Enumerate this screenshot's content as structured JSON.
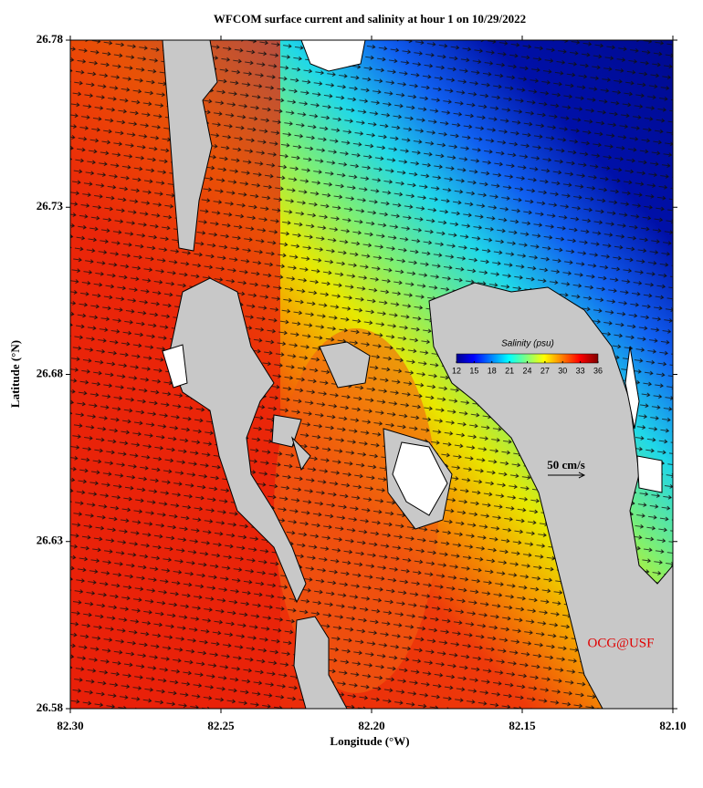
{
  "chart_data": {
    "type": "map",
    "title": "WFCOM surface current and salinity at hour 1 on 10/29/2022",
    "x_label": "Longitude (°W)",
    "y_label": "Latitude (°N)",
    "xlim": [
      82.3,
      82.1
    ],
    "xticks": [
      {
        "value": 82.3,
        "label": "82.30"
      },
      {
        "value": 82.25,
        "label": "82.25"
      },
      {
        "value": 82.2,
        "label": "82.20"
      },
      {
        "value": 82.15,
        "label": "82.15"
      },
      {
        "value": 82.1,
        "label": "82.10"
      }
    ],
    "ylim": [
      26.58,
      26.78
    ],
    "yticks": [
      26.58,
      26.63,
      26.68,
      26.73,
      26.78
    ],
    "colorbar": {
      "label": "Salinity (psu)",
      "clim": [
        12,
        36
      ],
      "ticks": [
        12,
        15,
        18,
        21,
        24,
        27,
        30,
        33,
        36
      ]
    },
    "scale_label": "50 cm/s",
    "credit": "OCG@USF"
  }
}
